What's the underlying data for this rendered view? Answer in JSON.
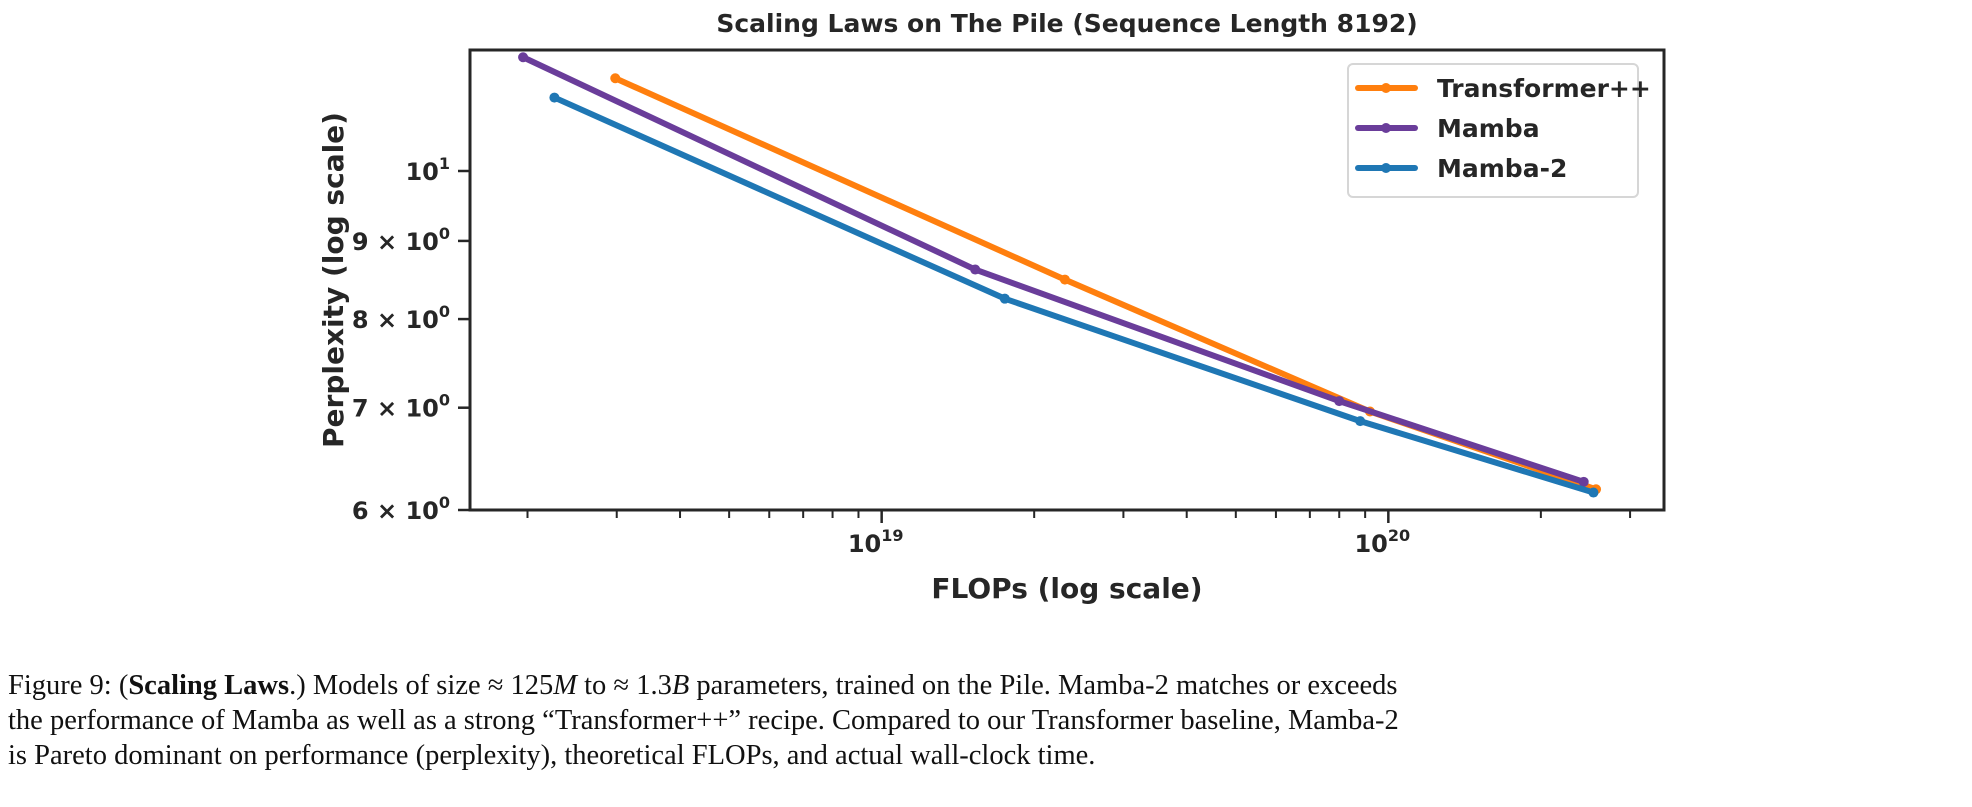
{
  "chart_data": {
    "type": "line",
    "title": "Scaling Laws on The Pile (Sequence Length 8192)",
    "xlabel": "FLOPs (log scale)",
    "ylabel": "Perplexity (log scale)",
    "xscale": "log",
    "yscale": "log",
    "xlim": [
      1.54e+18,
      3.5e+20
    ],
    "ylim": [
      6.0,
      12.0
    ],
    "grid": false,
    "legend_position": "top-right",
    "x_ticks": [
      {
        "value": 1e+19,
        "base": "10",
        "exp": "19"
      },
      {
        "value": 1e+20,
        "base": "10",
        "exp": "20"
      }
    ],
    "y_ticks": [
      {
        "value": 10,
        "mant": "",
        "base": "10",
        "exp": "1"
      },
      {
        "value": 9,
        "mant": "9 × ",
        "base": "10",
        "exp": "0"
      },
      {
        "value": 8,
        "mant": "8 × ",
        "base": "10",
        "exp": "0"
      },
      {
        "value": 7,
        "mant": "7 × ",
        "base": "10",
        "exp": "0"
      },
      {
        "value": 6,
        "mant": "6 × ",
        "base": "10",
        "exp": "0"
      }
    ],
    "series": [
      {
        "name": "Transformer++",
        "color": "#ff7f0e",
        "x": [
          2.98e+18,
          2.3e+19,
          9.2e+19,
          2.57e+20
        ],
        "y": [
          11.5,
          8.49,
          6.96,
          6.19
        ]
      },
      {
        "name": "Mamba",
        "color": "#6a3d9a",
        "x": [
          1.96e+18,
          1.53e+19,
          8e+19,
          2.43e+20
        ],
        "y": [
          11.87,
          8.62,
          7.07,
          6.26
        ]
      },
      {
        "name": "Mamba-2",
        "color": "#1f77b4",
        "x": [
          2.26e+18,
          1.75e+19,
          8.8e+19,
          2.54e+20
        ],
        "y": [
          11.17,
          8.25,
          6.86,
          6.16
        ]
      }
    ]
  },
  "caption": {
    "prefix": "Figure 9: (",
    "bold": "Scaling Laws",
    "l1a": ".) Models of size ≈ 125",
    "m": "M",
    "l1b": " to ≈ 1.3",
    "b": "B",
    "l1c": " parameters, trained on the Pile. Mamba-2 matches or exceeds",
    "line2": "the performance of Mamba as well as a strong “Transformer++” recipe. Compared to our Transformer baseline, Mamba-2",
    "line3": "is Pareto dominant on performance (perplexity), theoretical FLOPs, and actual wall-clock time."
  }
}
